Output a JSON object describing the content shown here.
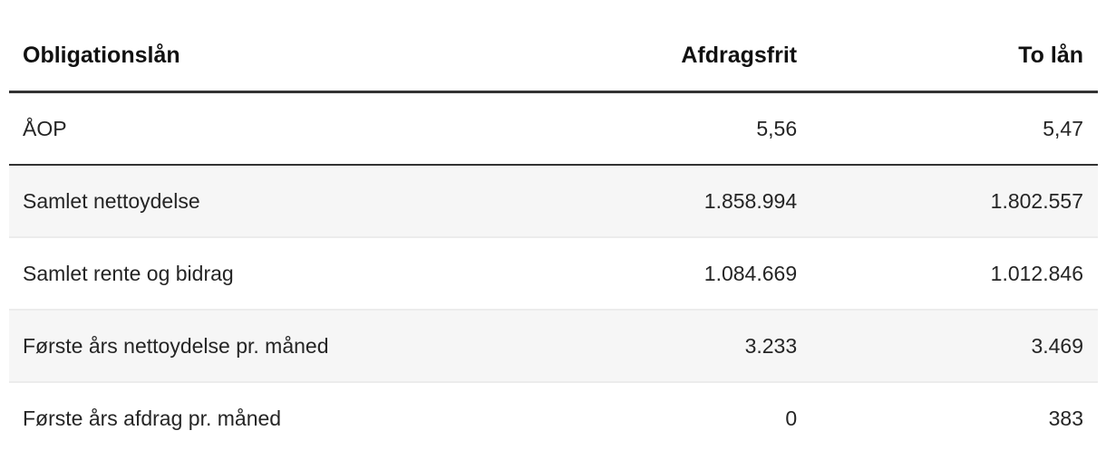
{
  "table": {
    "title_column": "Obligationslån",
    "columns": [
      {
        "label": "Obligationslån",
        "align": "left"
      },
      {
        "label": "Afdragsfrit",
        "align": "right"
      },
      {
        "label": "To lån",
        "align": "right"
      }
    ],
    "rows": [
      {
        "label": "ÅOP",
        "values": [
          "5,56",
          "5,47"
        ]
      },
      {
        "label": "Samlet nettoydelse",
        "values": [
          "1.858.994",
          "1.802.557"
        ]
      },
      {
        "label": "Samlet rente og bidrag",
        "values": [
          "1.084.669",
          "1.012.846"
        ]
      },
      {
        "label": "Første års nettoydelse pr. måned",
        "values": [
          "3.233",
          "3.469"
        ]
      },
      {
        "label": "Første års afdrag pr. måned",
        "values": [
          "0",
          "383"
        ]
      }
    ]
  },
  "colors": {
    "heavy_rule": "#333333",
    "light_rule": "#ececec",
    "alt_row_background": "#f6f6f6",
    "header_text": "#111111",
    "body_text": "#252525",
    "page_background": "#ffffff"
  }
}
